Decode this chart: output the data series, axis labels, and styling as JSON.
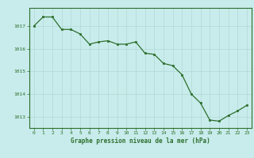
{
  "x": [
    0,
    1,
    2,
    3,
    4,
    5,
    6,
    7,
    8,
    9,
    10,
    11,
    12,
    13,
    14,
    15,
    16,
    17,
    18,
    19,
    20,
    21,
    22,
    23
  ],
  "y": [
    1017.0,
    1017.4,
    1017.4,
    1016.85,
    1016.85,
    1016.65,
    1016.2,
    1016.3,
    1016.35,
    1016.2,
    1016.2,
    1016.3,
    1015.8,
    1015.75,
    1015.35,
    1015.25,
    1014.85,
    1014.0,
    1013.6,
    1012.85,
    1012.8,
    1013.05,
    1013.25,
    1013.5
  ],
  "line_color": "#2d6e2d",
  "marker_color": "#2d6e2d",
  "bg_color": "#c8eceb",
  "grid_color": "#b0d8d6",
  "label_color": "#2d6e2d",
  "xlabel": "Graphe pression niveau de la mer (hPa)",
  "ylim": [
    1012.5,
    1017.8
  ],
  "yticks": [
    1013,
    1014,
    1015,
    1016,
    1017
  ],
  "xticks": [
    0,
    1,
    2,
    3,
    4,
    5,
    6,
    7,
    8,
    9,
    10,
    11,
    12,
    13,
    14,
    15,
    16,
    17,
    18,
    19,
    20,
    21,
    22,
    23
  ],
  "figwidth": 3.2,
  "figheight": 2.0,
  "dpi": 100
}
